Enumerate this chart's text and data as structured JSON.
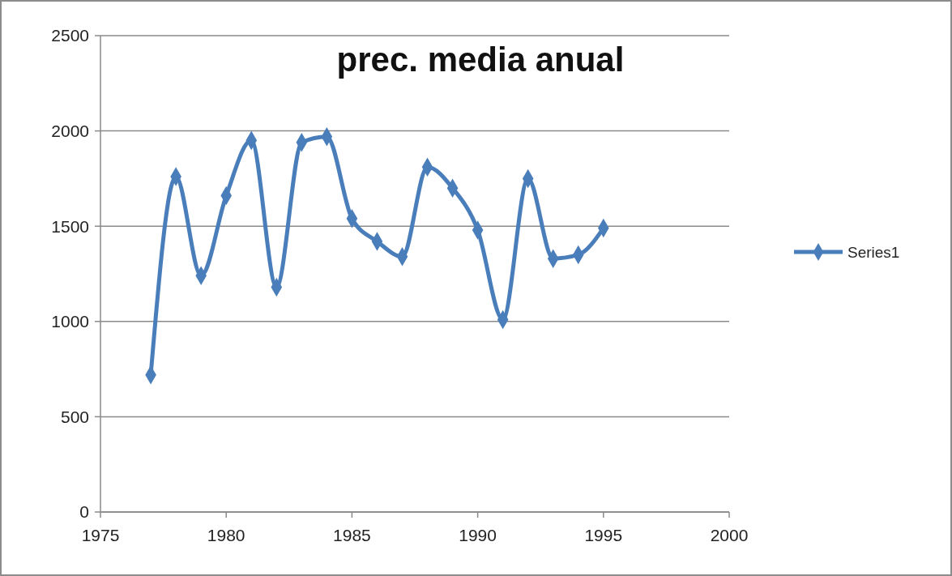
{
  "chart_data": {
    "type": "line",
    "title": "prec. media anual",
    "x": [
      1977,
      1978,
      1979,
      1980,
      1981,
      1982,
      1983,
      1984,
      1985,
      1986,
      1987,
      1988,
      1989,
      1990,
      1991,
      1992,
      1993,
      1994,
      1995
    ],
    "series": [
      {
        "name": "Series1",
        "color": "#4a7ebb",
        "values": [
          720,
          1760,
          1240,
          1660,
          1950,
          1180,
          1940,
          1970,
          1540,
          1420,
          1340,
          1810,
          1700,
          1480,
          1010,
          1750,
          1330,
          1350,
          1490
        ]
      }
    ],
    "xlim": [
      1975,
      2000
    ],
    "xticks": [
      1975,
      1980,
      1985,
      1990,
      1995,
      2000
    ],
    "ylim": [
      0,
      2500
    ],
    "yticks": [
      0,
      500,
      1000,
      1500,
      2000,
      2500
    ],
    "grid": "y",
    "legend": "right",
    "marker": "diamond",
    "line_style": "solid"
  }
}
